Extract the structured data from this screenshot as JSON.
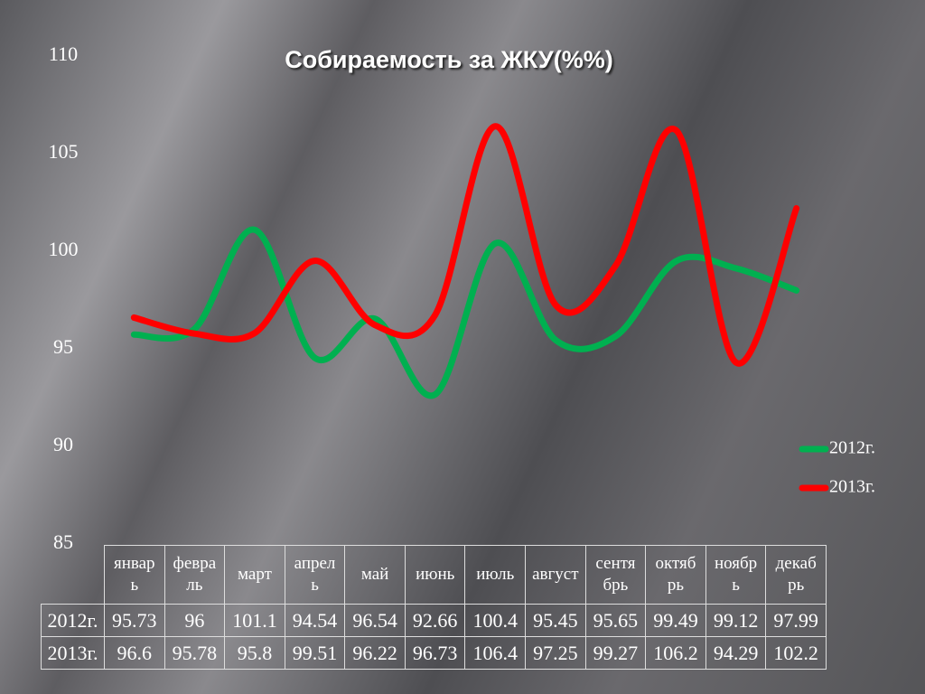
{
  "chart_data": {
    "type": "line",
    "title": "Собираемость за ЖКУ(%%)",
    "categories": [
      "январь",
      "февраль",
      "март",
      "апрель",
      "май",
      "июнь",
      "июль",
      "август",
      "сентябрь",
      "октябрь",
      "ноябрь",
      "декабрь"
    ],
    "series": [
      {
        "name": "2012г.",
        "color": "#00b050",
        "values": [
          95.73,
          96,
          101.1,
          94.54,
          96.54,
          92.66,
          100.4,
          95.45,
          95.65,
          99.49,
          99.12,
          97.99
        ]
      },
      {
        "name": "2013г.",
        "color": "#ff0000",
        "values": [
          96.6,
          95.78,
          95.8,
          99.51,
          96.22,
          96.73,
          106.4,
          97.25,
          99.27,
          106.2,
          94.29,
          102.2
        ]
      }
    ],
    "ylim": [
      85,
      110
    ],
    "yticks": [
      85,
      90,
      95,
      100,
      105,
      110
    ],
    "grid": false,
    "legend": "right",
    "smooth": true,
    "data_table": true
  }
}
